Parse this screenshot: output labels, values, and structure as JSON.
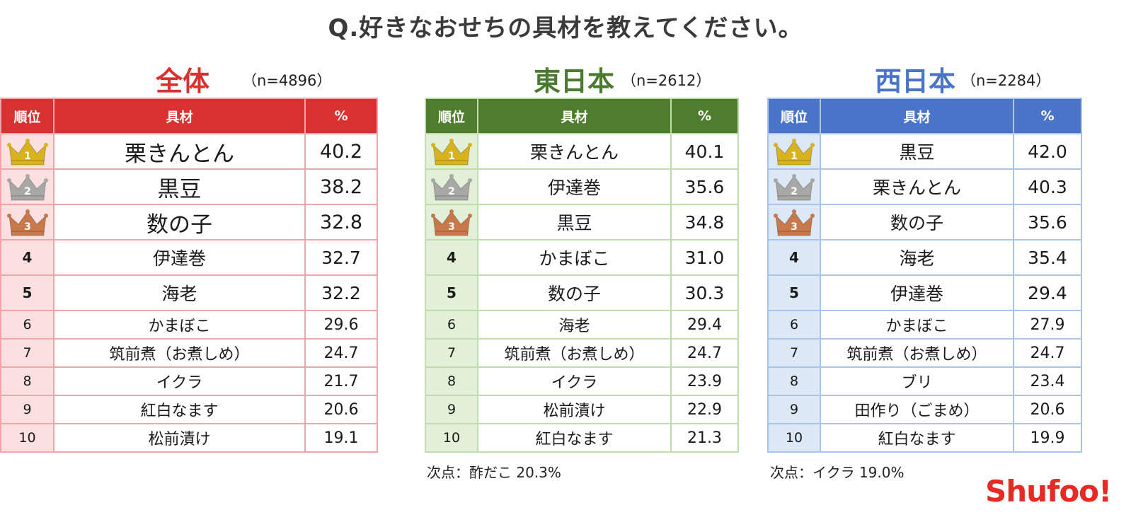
{
  "title": "Q.好きなおせちの具材を教えてください。",
  "headers": {
    "rank": "順位",
    "item": "具材",
    "pct": "%"
  },
  "colors": {
    "all": "#d93030",
    "east": "#4e7d2e",
    "west": "#4a74c8",
    "gold": "#d9b21f",
    "silver": "#a8a9a6",
    "bronze": "#c9784a",
    "logo": "#e52b23"
  },
  "panels": {
    "all": {
      "title": "全体",
      "n": "（n=4896）",
      "rows": [
        {
          "rank": "1",
          "item": "栗きんとん",
          "pct": "40.2"
        },
        {
          "rank": "2",
          "item": "黒豆",
          "pct": "38.2"
        },
        {
          "rank": "3",
          "item": "数の子",
          "pct": "32.8"
        },
        {
          "rank": "4",
          "item": "伊達巻",
          "pct": "32.7"
        },
        {
          "rank": "5",
          "item": "海老",
          "pct": "32.2"
        },
        {
          "rank": "6",
          "item": "かまぼこ",
          "pct": "29.6"
        },
        {
          "rank": "7",
          "item": "筑前煮（お煮しめ）",
          "pct": "24.7"
        },
        {
          "rank": "8",
          "item": "イクラ",
          "pct": "21.7"
        },
        {
          "rank": "9",
          "item": "紅白なます",
          "pct": "20.6"
        },
        {
          "rank": "10",
          "item": "松前漬け",
          "pct": "19.1"
        }
      ]
    },
    "east": {
      "title": "東日本",
      "n": "（n=2612）",
      "rows": [
        {
          "rank": "1",
          "item": "栗きんとん",
          "pct": "40.1"
        },
        {
          "rank": "2",
          "item": "伊達巻",
          "pct": "35.6"
        },
        {
          "rank": "3",
          "item": "黒豆",
          "pct": "34.8"
        },
        {
          "rank": "4",
          "item": "かまぼこ",
          "pct": "31.0"
        },
        {
          "rank": "5",
          "item": "数の子",
          "pct": "30.3"
        },
        {
          "rank": "6",
          "item": "海老",
          "pct": "29.4"
        },
        {
          "rank": "7",
          "item": "筑前煮（お煮しめ）",
          "pct": "24.7"
        },
        {
          "rank": "8",
          "item": "イクラ",
          "pct": "23.9"
        },
        {
          "rank": "9",
          "item": "松前漬け",
          "pct": "22.9"
        },
        {
          "rank": "10",
          "item": "紅白なます",
          "pct": "21.3"
        }
      ],
      "note": "次点：酢だこ 20.3%"
    },
    "west": {
      "title": "西日本",
      "n": "（n=2284）",
      "rows": [
        {
          "rank": "1",
          "item": "黒豆",
          "pct": "42.0"
        },
        {
          "rank": "2",
          "item": "栗きんとん",
          "pct": "40.3"
        },
        {
          "rank": "3",
          "item": "数の子",
          "pct": "35.6"
        },
        {
          "rank": "4",
          "item": "海老",
          "pct": "35.4"
        },
        {
          "rank": "5",
          "item": "伊達巻",
          "pct": "29.4"
        },
        {
          "rank": "6",
          "item": "かまぼこ",
          "pct": "27.9"
        },
        {
          "rank": "7",
          "item": "筑前煮（お煮しめ）",
          "pct": "24.7"
        },
        {
          "rank": "8",
          "item": "ブリ",
          "pct": "23.4"
        },
        {
          "rank": "9",
          "item": "田作り（ごまめ）",
          "pct": "20.6"
        },
        {
          "rank": "10",
          "item": "紅白なます",
          "pct": "19.9"
        }
      ],
      "note": "次点：イクラ 19.0%"
    }
  },
  "logo": "Shufoo!"
}
